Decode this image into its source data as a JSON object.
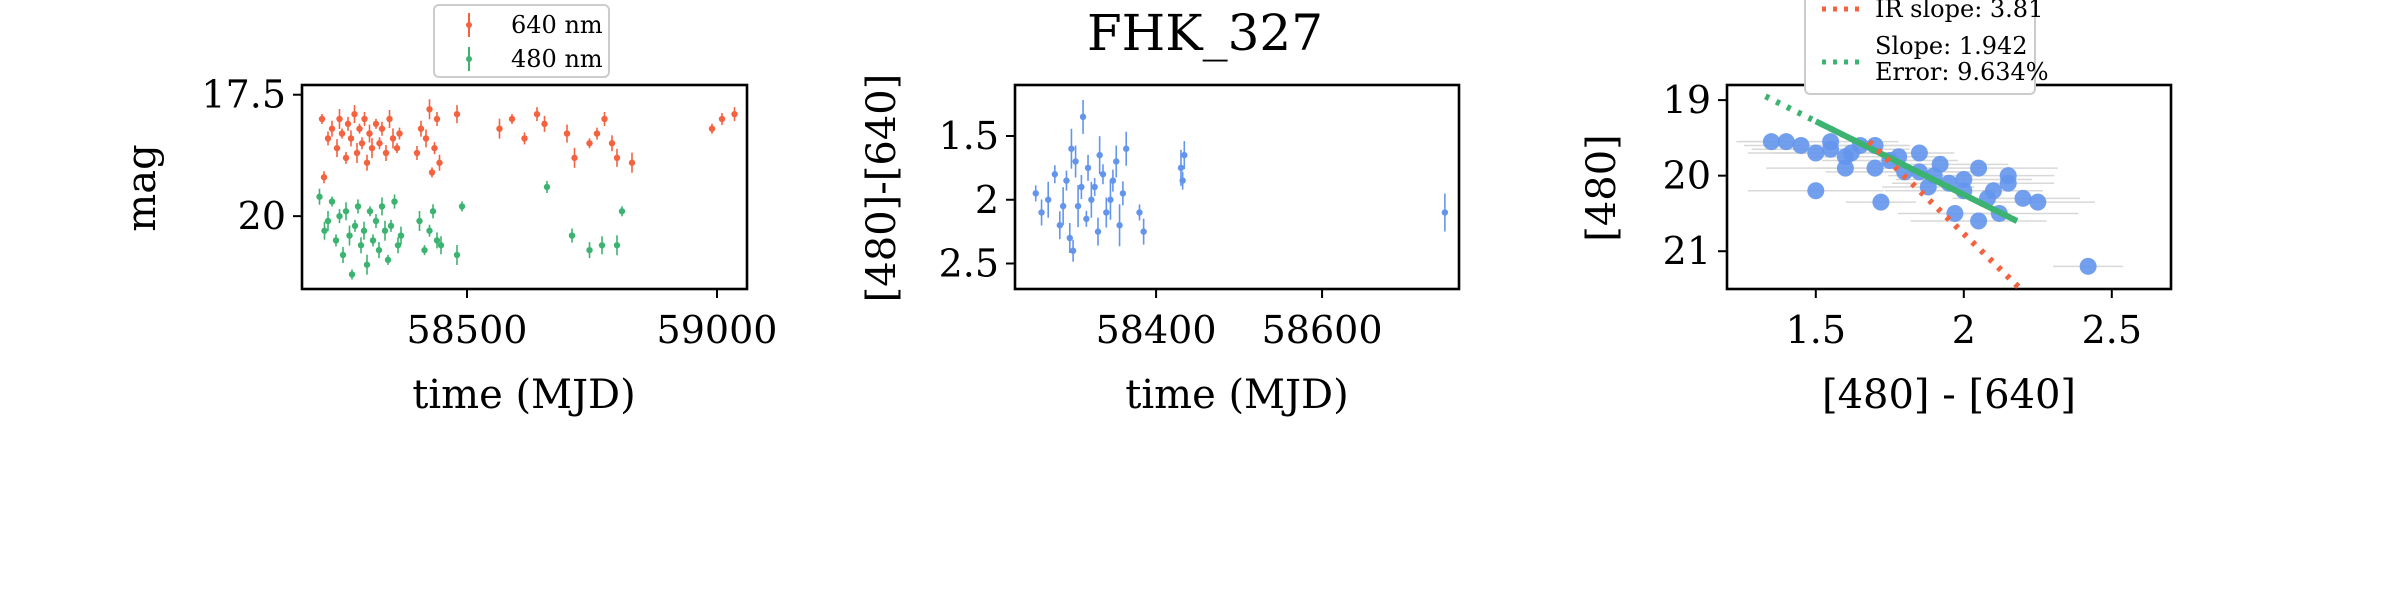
{
  "title": "FHK_327",
  "colors": {
    "red": "#f4623f",
    "green": "#3cb371",
    "blue": "#6495ed",
    "errbar": "#d8d8d8"
  },
  "chart_data": [
    {
      "type": "scatter",
      "xlabel": "time (MJD)",
      "ylabel": "mag",
      "xlim": [
        58170,
        59060
      ],
      "ylim": [
        21.5,
        17.3
      ],
      "xticks": [
        58500,
        59000
      ],
      "yticks": [
        17.5,
        20.0
      ],
      "legend": {
        "placement": "top-center",
        "entries": [
          "640 nm",
          "480 nm"
        ]
      },
      "series": [
        {
          "name": "640 nm",
          "color": "#f4623f",
          "x": [
            58210,
            58214,
            58222,
            58230,
            58240,
            58245,
            58250,
            58258,
            58262,
            58268,
            58275,
            58280,
            58285,
            58290,
            58295,
            58300,
            58305,
            58310,
            58318,
            58325,
            58330,
            58338,
            58345,
            58352,
            58360,
            58365,
            58400,
            58408,
            58418,
            58425,
            58430,
            58435,
            58440,
            58445,
            58480,
            58565,
            58590,
            58615,
            58640,
            58655,
            58700,
            58715,
            58745,
            58760,
            58775,
            58790,
            58800,
            58830,
            58990,
            59010,
            59035
          ],
          "y": [
            18.0,
            19.2,
            18.4,
            18.2,
            18.6,
            18.0,
            18.3,
            18.8,
            18.1,
            18.4,
            17.9,
            18.7,
            18.2,
            18.5,
            18.0,
            18.9,
            18.3,
            18.6,
            18.1,
            18.5,
            18.2,
            18.7,
            18.0,
            18.4,
            18.6,
            18.3,
            18.7,
            18.2,
            18.4,
            17.8,
            19.1,
            18.6,
            18.0,
            18.9,
            17.9,
            18.2,
            18.0,
            18.4,
            17.9,
            18.1,
            18.3,
            18.8,
            18.5,
            18.3,
            18.0,
            18.5,
            18.8,
            18.9,
            18.2,
            18.0,
            17.9
          ]
        },
        {
          "name": "480 nm",
          "color": "#3cb371",
          "x": [
            58205,
            58215,
            58222,
            58230,
            58238,
            58245,
            58252,
            58258,
            58265,
            58270,
            58276,
            58282,
            58288,
            58294,
            58300,
            58306,
            58312,
            58318,
            58324,
            58330,
            58336,
            58342,
            58348,
            58355,
            58362,
            58368,
            58405,
            58415,
            58425,
            58432,
            58440,
            58448,
            58480,
            58490,
            58660,
            58710,
            58745,
            58770,
            58800,
            58810
          ],
          "y": [
            19.6,
            20.3,
            20.1,
            19.7,
            20.5,
            20.0,
            20.8,
            19.9,
            20.4,
            21.2,
            20.2,
            19.8,
            20.6,
            20.3,
            21.0,
            19.9,
            20.5,
            20.1,
            20.7,
            19.8,
            20.3,
            20.9,
            20.2,
            19.7,
            20.6,
            20.4,
            20.1,
            20.7,
            20.3,
            19.9,
            20.5,
            20.6,
            20.8,
            19.8,
            19.4,
            20.4,
            20.7,
            20.6,
            20.6,
            19.9
          ]
        }
      ]
    },
    {
      "type": "scatter",
      "xlabel": "time (MJD)",
      "ylabel": "[480]-[640]",
      "xlim": [
        58230,
        58765
      ],
      "ylim": [
        2.7,
        1.1
      ],
      "xticks": [
        58400,
        58600
      ],
      "yticks": [
        1.5,
        2.0,
        2.5
      ],
      "series": [
        {
          "color": "#6495ed",
          "x": [
            58255,
            58262,
            58270,
            58278,
            58284,
            58288,
            58292,
            58296,
            58298,
            58300,
            58303,
            58306,
            58310,
            58312,
            58316,
            58318,
            58322,
            58326,
            58330,
            58332,
            58336,
            58340,
            58345,
            58348,
            58352,
            58356,
            58360,
            58364,
            58380,
            58385,
            58430,
            58432,
            58434,
            58748
          ],
          "y": [
            1.95,
            2.1,
            2.0,
            1.8,
            2.2,
            2.05,
            1.85,
            2.3,
            1.6,
            2.4,
            1.7,
            2.05,
            1.9,
            1.35,
            2.15,
            1.75,
            2.0,
            1.9,
            2.25,
            1.65,
            1.8,
            2.1,
            2.0,
            1.85,
            1.7,
            2.2,
            1.95,
            1.6,
            2.1,
            2.25,
            1.75,
            1.85,
            1.65,
            2.1
          ]
        }
      ]
    },
    {
      "type": "scatter",
      "xlabel": "[480] - [640]",
      "ylabel": "[480]",
      "xlim": [
        1.2,
        2.7
      ],
      "ylim": [
        21.5,
        18.8
      ],
      "xticks": [
        1.5,
        2.0,
        2.5
      ],
      "yticks": [
        19,
        20,
        21
      ],
      "legend": {
        "placement": "top-center",
        "entries": [
          "IR slope: 3.81",
          "Slope: 1.942",
          "Error: 9.634%"
        ]
      },
      "points": {
        "color": "#6495ed",
        "x": [
          1.35,
          1.4,
          1.45,
          1.5,
          1.55,
          1.6,
          1.65,
          1.7,
          1.75,
          1.8,
          1.85,
          1.9,
          1.95,
          2.0,
          2.05,
          2.1,
          2.15,
          2.2,
          1.55,
          1.62,
          1.7,
          1.78,
          1.85,
          1.92,
          2.0,
          2.08,
          2.15,
          2.25,
          1.5,
          1.6,
          1.72,
          1.88,
          1.97,
          2.05,
          2.12,
          2.42
        ],
        "y": [
          19.55,
          19.55,
          19.6,
          19.7,
          19.65,
          19.75,
          19.6,
          19.9,
          19.8,
          19.95,
          19.7,
          20.0,
          20.1,
          20.05,
          19.9,
          20.2,
          20.1,
          20.3,
          19.55,
          19.7,
          19.6,
          19.75,
          19.95,
          19.85,
          20.2,
          20.3,
          20.0,
          20.35,
          20.2,
          19.9,
          20.35,
          20.15,
          20.5,
          20.6,
          20.5,
          21.2
        ]
      },
      "fit_lines": [
        {
          "name": "IR slope: 3.81",
          "color": "#f4623f",
          "style": "dotted",
          "slope": 3.81,
          "x_range": [
            1.68,
            2.2
          ],
          "y_at_start": 19.55
        },
        {
          "name": "Slope: 1.942",
          "color": "#3cb371",
          "style": "dotted",
          "slope": 1.942,
          "x_range": [
            1.33,
            2.2
          ],
          "y_at_start": 18.95
        }
      ]
    }
  ]
}
